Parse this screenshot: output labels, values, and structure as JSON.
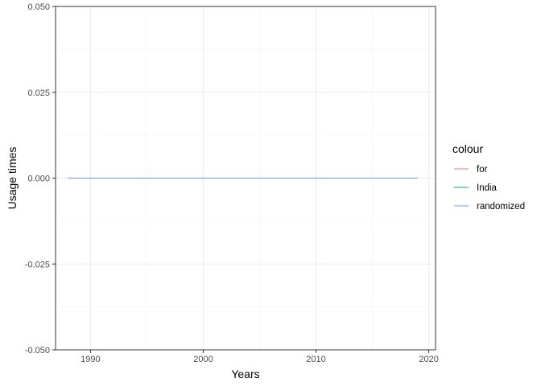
{
  "chart_data": {
    "type": "line",
    "xlabel": "Years",
    "ylabel": "Usage times",
    "xlim": [
      1986.9,
      2020.6
    ],
    "ylim": [
      -0.05,
      0.05
    ],
    "x_ticks": [
      1990,
      2000,
      2010,
      2020
    ],
    "x_tick_labels": [
      "1990",
      "2000",
      "2010",
      "2020"
    ],
    "x_minor_ticks": [
      1995,
      2005,
      2015
    ],
    "y_ticks": [
      -0.05,
      -0.025,
      0,
      0.025,
      0.05
    ],
    "y_tick_labels": [
      "-0.050",
      "-0.025",
      "0.000",
      "0.025",
      "0.050"
    ],
    "y_minor_ticks": [
      -0.0375,
      -0.0125,
      0.0125,
      0.0375
    ],
    "grid": true,
    "legend": {
      "title": "colour",
      "placement": "right",
      "entries": [
        "for",
        "India",
        "randomized"
      ]
    },
    "series": [
      {
        "name": "for",
        "color": "#F8766D",
        "x": [
          1988,
          2019
        ],
        "y": [
          0,
          0
        ]
      },
      {
        "name": "India",
        "color": "#00BA38",
        "x": [
          1988,
          2019
        ],
        "y": [
          0,
          0
        ]
      },
      {
        "name": "randomized",
        "color": "#619CFF",
        "x": [
          1988,
          2019
        ],
        "y": [
          0,
          0
        ]
      }
    ]
  }
}
